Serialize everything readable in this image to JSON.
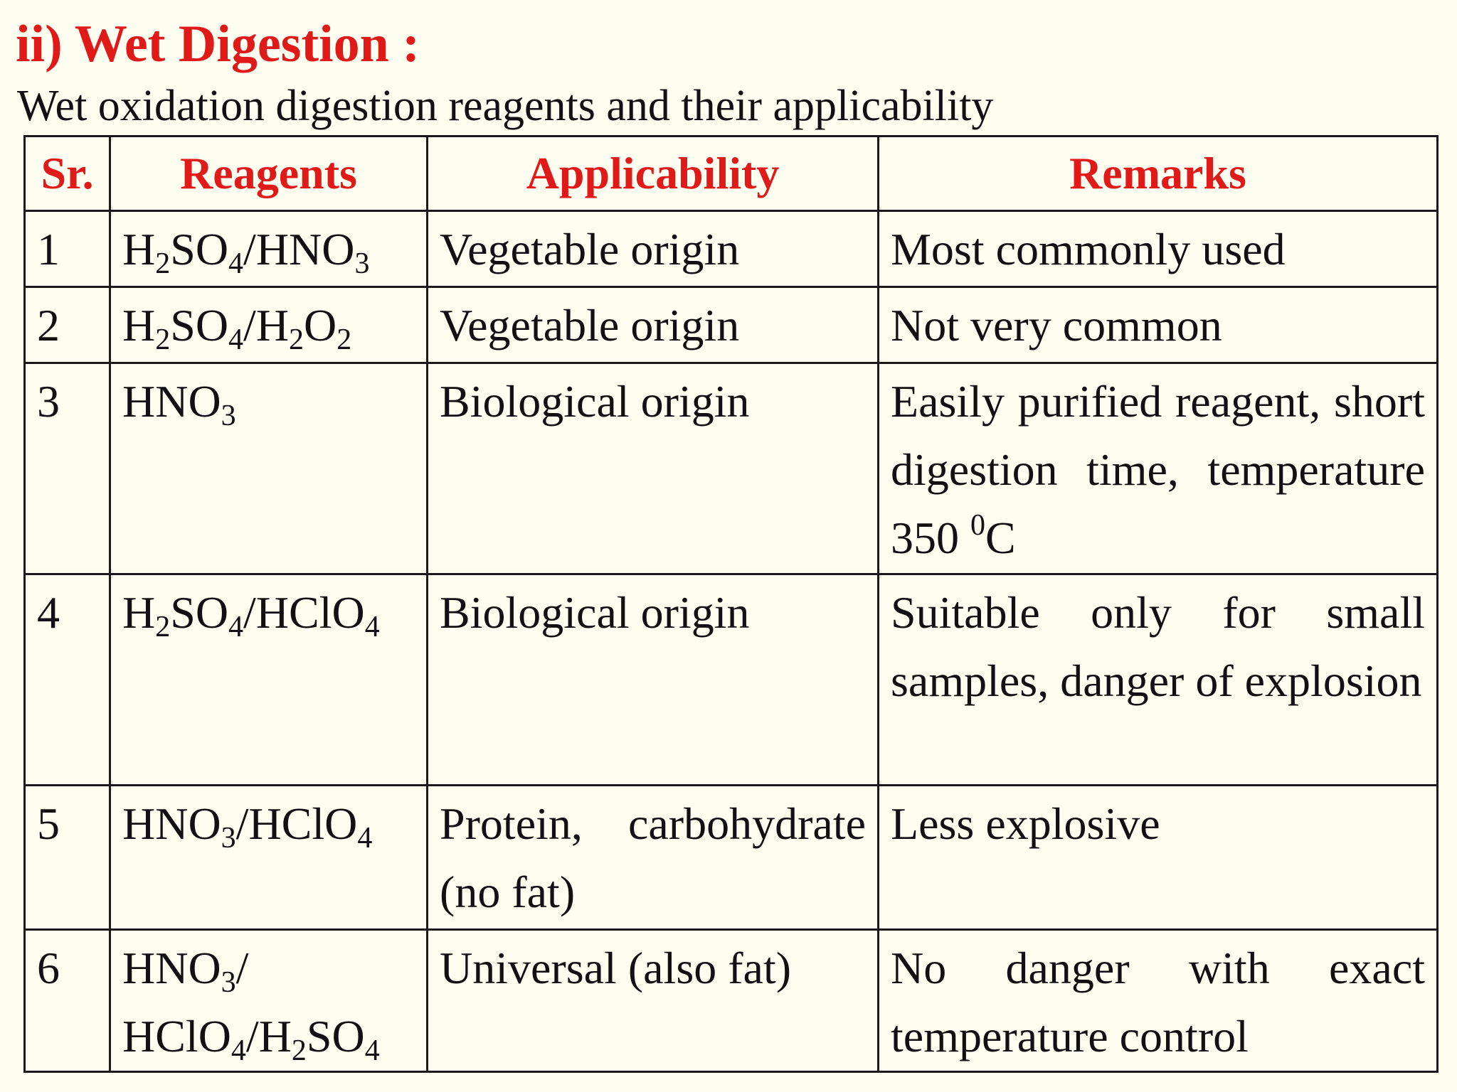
{
  "heading": "ii) Wet Digestion :",
  "subtitle": "Wet oxidation digestion reagents and their applicability",
  "table": {
    "headers": [
      "Sr.",
      "Reagents",
      "Applicability",
      "Remarks"
    ],
    "rows": [
      {
        "sr": "1",
        "reagent": "H<sub>2</sub>SO<sub>4</sub>/HNO<sub>3</sub>",
        "applicability": "Vegetable origin",
        "remarks": "Most commonly used"
      },
      {
        "sr": "2",
        "reagent": "H<sub>2</sub>SO<sub>4</sub>/H<sub>2</sub>O<sub>2</sub>",
        "applicability": "Vegetable origin",
        "remarks": "Not very common"
      },
      {
        "sr": "3",
        "reagent": "HNO<sub>3</sub>",
        "applicability": "Biological origin",
        "remarks": "Easily purified reagent, short digestion time, temperature 350 <sup>0</sup>C"
      },
      {
        "sr": "4",
        "reagent": "H<sub>2</sub>SO<sub>4</sub>/HClO<sub>4</sub>",
        "applicability": "Biological origin",
        "remarks": "Suitable only for small samples, danger of explosion"
      },
      {
        "sr": "5",
        "reagent": "HNO<sub>3</sub>/HClO<sub>4</sub>",
        "applicability": "Protein, carbohydrate (no fat)",
        "remarks": "Less explosive"
      },
      {
        "sr": "6",
        "reagent": "HNO<sub>3</sub>/<br>HClO<sub>4</sub>/H<sub>2</sub>SO<sub>4</sub>",
        "applicability": "Universal (also fat)",
        "remarks": "No danger with exact temperature control"
      }
    ]
  }
}
